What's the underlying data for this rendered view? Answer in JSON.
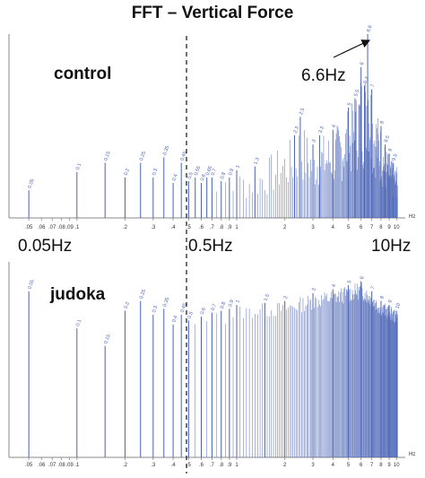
{
  "title": "FFT – Vertical Force",
  "panel_labels": {
    "top": "control",
    "bottom": "judoka"
  },
  "annotations": {
    "peak": "6.6Hz",
    "f_low": "0.05Hz",
    "f_mid": "0.5Hz",
    "f_high": "10Hz"
  },
  "colors": {
    "spectrum": "#4a63b4",
    "axis": "#888888",
    "tick_text": "#333333",
    "divider": "#111111"
  },
  "chart_data": [
    {
      "type": "bar",
      "panel": "control",
      "xscale": "log",
      "xlim": [
        0.045,
        10.5
      ],
      "x_tick_labels": [
        ".05",
        ".06",
        ".07",
        ".08",
        ".09",
        ".1",
        ".2",
        ".3",
        ".4",
        ".5",
        ".6",
        ".7",
        ".8",
        ".9",
        "1",
        "2",
        "3",
        "4",
        "5",
        "6",
        "7",
        "8",
        "9",
        "10"
      ],
      "x_unit_label": "Hz",
      "relative_amplitude": {
        "freqs": [
          0.05,
          0.1,
          0.15,
          0.2,
          0.25,
          0.3,
          0.35,
          0.4,
          0.45,
          0.5,
          0.55,
          0.6,
          0.65,
          0.7,
          0.8,
          0.9,
          1.0,
          1.3,
          2.3,
          2.5,
          3.0,
          3.3,
          4.0,
          5.0,
          5.5,
          6.0,
          6.3,
          6.6,
          7.0,
          8.0,
          8.5,
          9.0,
          9.5
        ],
        "values": [
          0.15,
          0.25,
          0.3,
          0.22,
          0.3,
          0.22,
          0.33,
          0.19,
          0.3,
          0.2,
          0.22,
          0.19,
          0.22,
          0.22,
          0.2,
          0.22,
          0.26,
          0.28,
          0.45,
          0.55,
          0.4,
          0.45,
          0.48,
          0.6,
          0.65,
          0.82,
          0.72,
          1.0,
          0.7,
          0.5,
          0.4,
          0.35,
          0.3
        ]
      },
      "data_labels": [
        "0.05",
        "0.1",
        "0.15",
        "0.2",
        "0.25",
        "0.3",
        "0.35",
        "0.4",
        "0.45",
        "0.5",
        "0.55",
        "0.6",
        "0.65",
        "0.7",
        "0.8",
        "0.9",
        "1",
        "1.3",
        "2.3",
        "2.5",
        "3",
        "3.3",
        "4",
        "5",
        "5.5",
        "6",
        "6.3",
        "6.6",
        "7",
        "8",
        "8.5",
        "9",
        "9.5"
      ]
    },
    {
      "type": "bar",
      "panel": "judoka",
      "xscale": "log",
      "xlim": [
        0.045,
        10.5
      ],
      "x_tick_labels": [
        ".05",
        ".06",
        ".07",
        ".08",
        ".09",
        ".1",
        ".2",
        ".3",
        ".4",
        ".5",
        ".6",
        ".7",
        ".8",
        ".9",
        "1",
        "2",
        "3",
        "4",
        "5",
        "6",
        "7",
        "8",
        "9",
        "10"
      ],
      "x_unit_label": "Hz",
      "relative_amplitude": {
        "freqs": [
          0.05,
          0.1,
          0.15,
          0.2,
          0.25,
          0.3,
          0.35,
          0.4,
          0.45,
          0.5,
          0.6,
          0.7,
          0.8,
          0.9,
          1.0,
          1.5,
          2.0,
          3.0,
          4.0,
          5.0,
          6.0,
          7.0,
          8.0,
          9.0,
          10.0
        ],
        "values": [
          0.85,
          0.66,
          0.57,
          0.75,
          0.8,
          0.73,
          0.76,
          0.68,
          0.73,
          0.7,
          0.72,
          0.74,
          0.75,
          0.76,
          0.78,
          0.79,
          0.8,
          0.84,
          0.86,
          0.88,
          0.9,
          0.85,
          0.8,
          0.78,
          0.75
        ]
      },
      "data_labels": [
        "0.05",
        "0.1",
        "0.15",
        "0.2",
        "0.25",
        "0.3",
        "0.35",
        "0.4",
        "0.45",
        "0.5",
        "0.6",
        "0.7",
        "0.8",
        "0.9",
        "1",
        "1.5",
        "2",
        "3",
        "4",
        "5",
        "6",
        "7",
        "8",
        "9",
        "10"
      ]
    }
  ]
}
